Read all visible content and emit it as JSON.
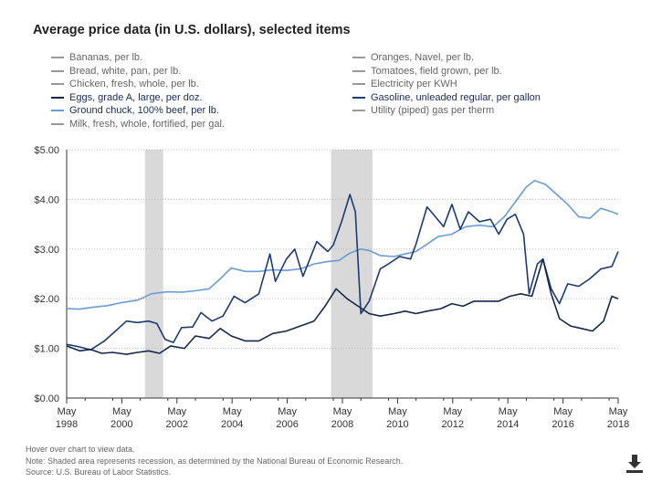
{
  "title": "Average price data (in U.S. dollars), selected items",
  "legend": [
    {
      "label": "Bananas, per lb.",
      "active": false,
      "color": "#999999"
    },
    {
      "label": "Bread, white, pan, per lb.",
      "active": false,
      "color": "#999999"
    },
    {
      "label": "Chicken, fresh, whole, per lb.",
      "active": false,
      "color": "#999999"
    },
    {
      "label": "Eggs, grade A, large, per doz.",
      "active": true,
      "color": "#14284b"
    },
    {
      "label": "Ground chuck, 100% beef, per lb.",
      "active": true,
      "color": "#6b9bd6"
    },
    {
      "label": "Milk, fresh, whole, fortified, per gal.",
      "active": false,
      "color": "#999999"
    },
    {
      "label": "Oranges, Navel, per lb.",
      "active": false,
      "color": "#999999"
    },
    {
      "label": "Tomatoes, field grown, per lb.",
      "active": false,
      "color": "#999999"
    },
    {
      "label": "Electricity per KWH",
      "active": false,
      "color": "#999999"
    },
    {
      "label": "Gasoline, unleaded regular, per gallon",
      "active": true,
      "color": "#1d3a73"
    },
    {
      "label": "Utility (piped) gas per therm",
      "active": false,
      "color": "#999999"
    }
  ],
  "notes": {
    "hover": "Hover over chart to view data.",
    "recession": "Note: Shaded area represents recession, as determined by the National Bureau of Economic Research.",
    "source": "Source: U.S. Bureau of Labor Statistics."
  },
  "icons": {
    "download": "download-icon"
  },
  "chart_data": {
    "type": "line",
    "title": "Average price data (in U.S. dollars), selected items",
    "ylim": [
      0,
      5
    ],
    "xlim": [
      1998.33,
      2018.33
    ],
    "y_ticks": [
      "$0.00",
      "$1.00",
      "$2.00",
      "$3.00",
      "$4.00",
      "$5.00"
    ],
    "x_ticks": [
      {
        "month": "May",
        "year": "1998",
        "x": 1998.33
      },
      {
        "month": "May",
        "year": "2000",
        "x": 2000.33
      },
      {
        "month": "May",
        "year": "2002",
        "x": 2002.33
      },
      {
        "month": "May",
        "year": "2004",
        "x": 2004.33
      },
      {
        "month": "May",
        "year": "2006",
        "x": 2006.33
      },
      {
        "month": "May",
        "year": "2008",
        "x": 2008.33
      },
      {
        "month": "May",
        "year": "2010",
        "x": 2010.33
      },
      {
        "month": "May",
        "year": "2012",
        "x": 2012.33
      },
      {
        "month": "May",
        "year": "2014",
        "x": 2014.33
      },
      {
        "month": "May",
        "year": "2016",
        "x": 2016.33
      },
      {
        "month": "May",
        "year": "2018",
        "x": 2018.33
      }
    ],
    "recessions": [
      [
        2001.17,
        2001.83
      ],
      [
        2007.92,
        2009.42
      ]
    ],
    "grid": true,
    "series": [
      {
        "name": "Ground chuck, 100% beef, per lb.",
        "color": "#6b9bd6",
        "points": [
          [
            1998.33,
            1.8
          ],
          [
            1998.8,
            1.79
          ],
          [
            1999.3,
            1.83
          ],
          [
            1999.8,
            1.86
          ],
          [
            2000.3,
            1.92
          ],
          [
            2000.9,
            1.97
          ],
          [
            2001.4,
            2.1
          ],
          [
            2002.0,
            2.14
          ],
          [
            2002.5,
            2.13
          ],
          [
            2003.0,
            2.16
          ],
          [
            2003.5,
            2.2
          ],
          [
            2003.9,
            2.4
          ],
          [
            2004.3,
            2.62
          ],
          [
            2004.8,
            2.55
          ],
          [
            2005.3,
            2.55
          ],
          [
            2005.8,
            2.58
          ],
          [
            2006.3,
            2.57
          ],
          [
            2006.8,
            2.6
          ],
          [
            2007.3,
            2.7
          ],
          [
            2007.8,
            2.75
          ],
          [
            2008.2,
            2.77
          ],
          [
            2008.6,
            2.92
          ],
          [
            2009.0,
            3.0
          ],
          [
            2009.3,
            2.97
          ],
          [
            2009.7,
            2.87
          ],
          [
            2010.2,
            2.85
          ],
          [
            2010.6,
            2.9
          ],
          [
            2011.0,
            2.95
          ],
          [
            2011.4,
            3.1
          ],
          [
            2011.8,
            3.25
          ],
          [
            2012.3,
            3.3
          ],
          [
            2012.8,
            3.45
          ],
          [
            2013.3,
            3.48
          ],
          [
            2013.8,
            3.45
          ],
          [
            2014.2,
            3.65
          ],
          [
            2014.6,
            3.95
          ],
          [
            2015.0,
            4.25
          ],
          [
            2015.3,
            4.38
          ],
          [
            2015.7,
            4.3
          ],
          [
            2016.1,
            4.1
          ],
          [
            2016.5,
            3.9
          ],
          [
            2016.9,
            3.65
          ],
          [
            2017.3,
            3.62
          ],
          [
            2017.7,
            3.82
          ],
          [
            2018.1,
            3.75
          ],
          [
            2018.33,
            3.7
          ]
        ]
      },
      {
        "name": "Gasoline, unleaded regular, per gallon",
        "color": "#1d3a73",
        "points": [
          [
            1998.33,
            1.08
          ],
          [
            1998.8,
            1.03
          ],
          [
            1999.2,
            0.97
          ],
          [
            1999.7,
            1.15
          ],
          [
            2000.1,
            1.35
          ],
          [
            2000.5,
            1.55
          ],
          [
            2000.9,
            1.52
          ],
          [
            2001.3,
            1.55
          ],
          [
            2001.6,
            1.5
          ],
          [
            2001.9,
            1.18
          ],
          [
            2002.2,
            1.12
          ],
          [
            2002.5,
            1.42
          ],
          [
            2002.9,
            1.43
          ],
          [
            2003.2,
            1.72
          ],
          [
            2003.6,
            1.55
          ],
          [
            2004.0,
            1.65
          ],
          [
            2004.4,
            2.05
          ],
          [
            2004.8,
            1.92
          ],
          [
            2005.3,
            2.1
          ],
          [
            2005.7,
            2.9
          ],
          [
            2005.9,
            2.35
          ],
          [
            2006.3,
            2.8
          ],
          [
            2006.6,
            3.0
          ],
          [
            2006.9,
            2.45
          ],
          [
            2007.4,
            3.15
          ],
          [
            2007.8,
            2.95
          ],
          [
            2008.0,
            3.08
          ],
          [
            2008.3,
            3.55
          ],
          [
            2008.6,
            4.1
          ],
          [
            2008.8,
            3.75
          ],
          [
            2009.0,
            1.7
          ],
          [
            2009.3,
            1.95
          ],
          [
            2009.7,
            2.6
          ],
          [
            2010.0,
            2.7
          ],
          [
            2010.4,
            2.85
          ],
          [
            2010.8,
            2.8
          ],
          [
            2011.0,
            3.1
          ],
          [
            2011.4,
            3.85
          ],
          [
            2011.7,
            3.65
          ],
          [
            2012.0,
            3.45
          ],
          [
            2012.3,
            3.9
          ],
          [
            2012.6,
            3.4
          ],
          [
            2012.9,
            3.75
          ],
          [
            2013.3,
            3.55
          ],
          [
            2013.7,
            3.6
          ],
          [
            2014.0,
            3.3
          ],
          [
            2014.3,
            3.6
          ],
          [
            2014.6,
            3.7
          ],
          [
            2014.9,
            3.3
          ],
          [
            2015.1,
            2.1
          ],
          [
            2015.4,
            2.7
          ],
          [
            2015.6,
            2.8
          ],
          [
            2015.9,
            2.2
          ],
          [
            2016.2,
            1.9
          ],
          [
            2016.5,
            2.3
          ],
          [
            2016.9,
            2.25
          ],
          [
            2017.3,
            2.4
          ],
          [
            2017.7,
            2.6
          ],
          [
            2018.1,
            2.65
          ],
          [
            2018.33,
            2.95
          ]
        ]
      },
      {
        "name": "Eggs, grade A, large, per doz.",
        "color": "#14284b",
        "points": [
          [
            1998.33,
            1.05
          ],
          [
            1998.8,
            0.95
          ],
          [
            1999.2,
            0.98
          ],
          [
            1999.6,
            0.9
          ],
          [
            2000.0,
            0.92
          ],
          [
            2000.5,
            0.88
          ],
          [
            2000.9,
            0.92
          ],
          [
            2001.3,
            0.95
          ],
          [
            2001.7,
            0.9
          ],
          [
            2002.1,
            1.05
          ],
          [
            2002.6,
            1.0
          ],
          [
            2003.0,
            1.25
          ],
          [
            2003.5,
            1.2
          ],
          [
            2003.9,
            1.4
          ],
          [
            2004.3,
            1.25
          ],
          [
            2004.8,
            1.15
          ],
          [
            2005.3,
            1.15
          ],
          [
            2005.8,
            1.3
          ],
          [
            2006.3,
            1.35
          ],
          [
            2006.8,
            1.45
          ],
          [
            2007.3,
            1.55
          ],
          [
            2007.7,
            1.85
          ],
          [
            2008.1,
            2.2
          ],
          [
            2008.5,
            2.0
          ],
          [
            2008.9,
            1.85
          ],
          [
            2009.3,
            1.7
          ],
          [
            2009.7,
            1.65
          ],
          [
            2010.2,
            1.7
          ],
          [
            2010.6,
            1.75
          ],
          [
            2011.0,
            1.7
          ],
          [
            2011.4,
            1.75
          ],
          [
            2011.9,
            1.8
          ],
          [
            2012.3,
            1.9
          ],
          [
            2012.7,
            1.85
          ],
          [
            2013.1,
            1.95
          ],
          [
            2013.6,
            1.95
          ],
          [
            2014.0,
            1.95
          ],
          [
            2014.4,
            2.05
          ],
          [
            2014.8,
            2.1
          ],
          [
            2015.2,
            2.05
          ],
          [
            2015.6,
            2.8
          ],
          [
            2015.9,
            2.1
          ],
          [
            2016.2,
            1.6
          ],
          [
            2016.6,
            1.45
          ],
          [
            2017.0,
            1.4
          ],
          [
            2017.4,
            1.35
          ],
          [
            2017.8,
            1.55
          ],
          [
            2018.1,
            2.05
          ],
          [
            2018.33,
            2.0
          ]
        ]
      }
    ]
  }
}
